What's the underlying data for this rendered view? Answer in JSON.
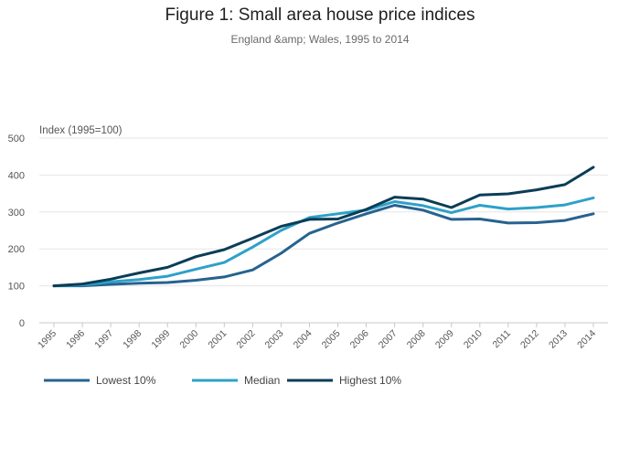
{
  "chart_data": {
    "type": "line",
    "title": "Figure 1: Small area house price indices",
    "subtitle": "England &amp; Wales, 1995 to 2014",
    "ylabel": "Index (1995=100)",
    "xlabel": "",
    "ylim": [
      0,
      500
    ],
    "yticks": [
      0,
      100,
      200,
      300,
      400,
      500
    ],
    "categories": [
      "1995",
      "1996",
      "1997",
      "1998",
      "1999",
      "2000",
      "2001",
      "2002",
      "2003",
      "2004",
      "2005",
      "2006",
      "2007",
      "2008",
      "2009",
      "2010",
      "2011",
      "2012",
      "2013",
      "2014"
    ],
    "grid": true,
    "legend_position": "bottom-left",
    "series": [
      {
        "name": "Lowest 10%",
        "color": "#27628f",
        "values": [
          100,
          100,
          104,
          107,
          109,
          115,
          124,
          143,
          188,
          242,
          270,
          295,
          318,
          305,
          280,
          281,
          270,
          271,
          277,
          295
        ]
      },
      {
        "name": "Median",
        "color": "#2ea1c9",
        "values": [
          100,
          102,
          111,
          117,
          126,
          145,
          163,
          205,
          250,
          285,
          295,
          305,
          328,
          317,
          298,
          318,
          308,
          312,
          319,
          338
        ]
      },
      {
        "name": "Highest 10%",
        "color": "#0b3d56",
        "values": [
          100,
          105,
          118,
          135,
          150,
          179,
          198,
          229,
          261,
          280,
          281,
          307,
          340,
          335,
          312,
          346,
          349,
          360,
          374,
          421
        ]
      }
    ]
  }
}
